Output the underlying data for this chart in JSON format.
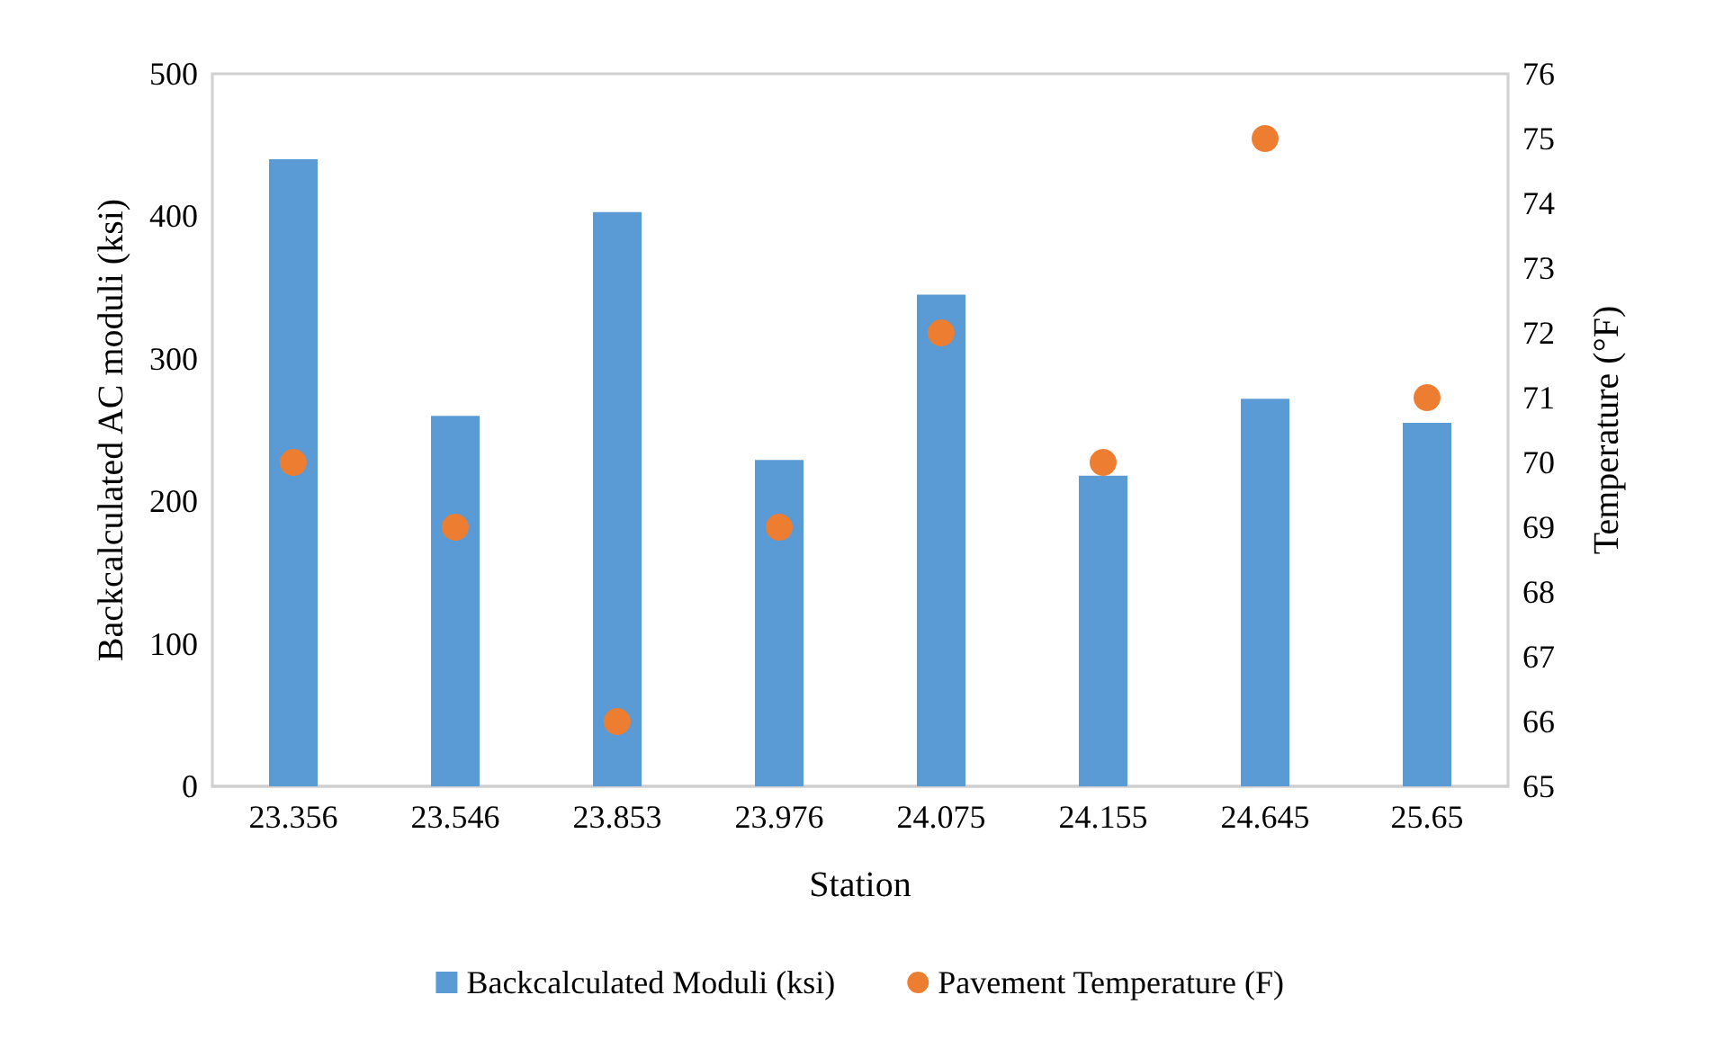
{
  "chart_data": {
    "type": "bar",
    "xlabel": "Station",
    "ylabel": "Backcalculated AC moduli (ksi)",
    "y2label": "Temperature (°F)",
    "categories": [
      "23.356",
      "23.546",
      "23.853",
      "23.976",
      "24.075",
      "24.155",
      "24.645",
      "25.65"
    ],
    "series": [
      {
        "name": "Backcalculated Moduli (ksi)",
        "color": "#5b9bd5",
        "values": [
          440,
          260,
          403,
          229,
          345,
          218,
          272,
          255
        ]
      },
      {
        "name": "Pavement Temperature (F)",
        "type": "scatter",
        "axis": "y2",
        "color": "#ed7d31",
        "marker": "circle",
        "values": [
          70,
          69,
          66,
          69,
          72,
          70,
          75,
          71
        ]
      }
    ],
    "ylim": [
      0,
      500
    ],
    "yticks": [
      0,
      100,
      200,
      300,
      400,
      500
    ],
    "y2lim": [
      65,
      76
    ],
    "y2ticks": [
      65,
      66,
      67,
      68,
      69,
      70,
      71,
      72,
      73,
      74,
      75,
      76
    ],
    "grid": false,
    "legend": "bottom"
  }
}
